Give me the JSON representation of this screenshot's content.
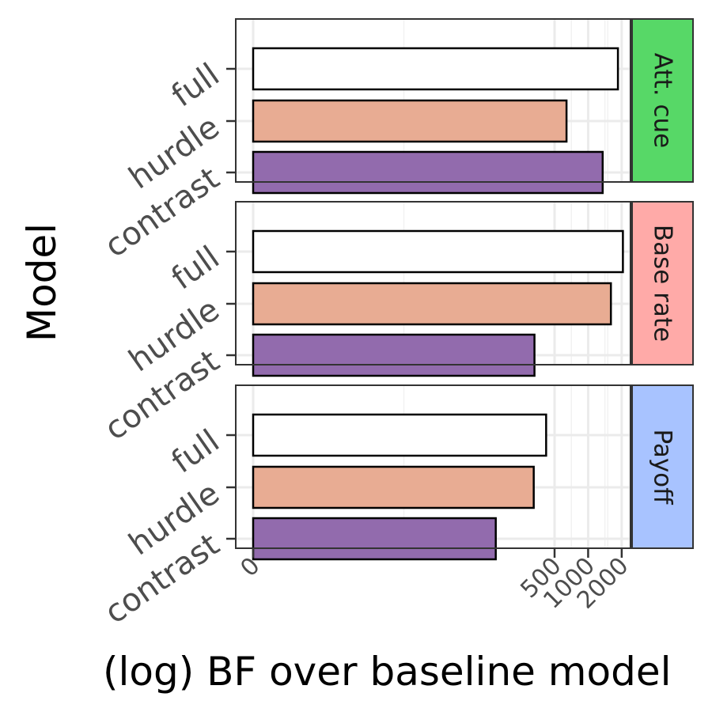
{
  "chart_data": {
    "type": "bar",
    "orientation": "horizontal",
    "facets": [
      "Att. cue",
      "Base rate",
      "Payoff"
    ],
    "facet_colors": [
      "#57d867",
      "#ffaaa8",
      "#a8c3ff"
    ],
    "categories": [
      "full",
      "hurdle",
      "contrast"
    ],
    "category_colors": [
      "#ffffff",
      "#e8ac93",
      "#926bad"
    ],
    "series": [
      {
        "facet": "Att. cue",
        "values": [
          1850,
          640,
          1350
        ]
      },
      {
        "facet": "Base rate",
        "values": [
          2050,
          1600,
          330
        ]
      },
      {
        "facet": "Payoff",
        "values": [
          420,
          325,
          148
        ]
      }
    ],
    "x_scale": "log1p",
    "xlim": [
      0,
      2700
    ],
    "x_ticks": [
      0,
      500,
      1000,
      2000
    ],
    "x_tick_labels": [
      "0",
      "500",
      "1000",
      "2000"
    ],
    "xlabel": "(log) BF over baseline model",
    "ylabel": "Model",
    "grid": true,
    "legend": "none"
  }
}
